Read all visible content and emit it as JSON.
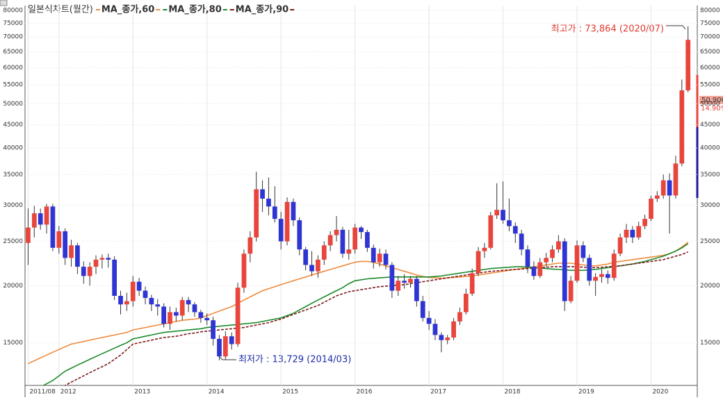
{
  "chart_data": {
    "type": "candlestick",
    "title": "일본식차트(월간)",
    "log_scale": true,
    "grid": true,
    "up_color": "#e8453c",
    "down_color": "#2f35d3",
    "ylim": [
      12100,
      82000
    ],
    "yticks": [
      15000,
      20000,
      25000,
      30000,
      35000,
      40000,
      45000,
      50000,
      55000,
      60000,
      65000,
      70000,
      75000,
      80000
    ],
    "categories": [
      "2011/08",
      null,
      null,
      null,
      null,
      "2012",
      null,
      null,
      null,
      null,
      null,
      null,
      null,
      null,
      null,
      null,
      null,
      "2013",
      null,
      null,
      null,
      null,
      null,
      null,
      null,
      null,
      null,
      null,
      null,
      "2014",
      null,
      null,
      null,
      null,
      null,
      null,
      null,
      null,
      null,
      null,
      null,
      "2015",
      null,
      null,
      null,
      null,
      null,
      null,
      null,
      null,
      null,
      null,
      null,
      "2016",
      null,
      null,
      null,
      null,
      null,
      null,
      null,
      null,
      null,
      null,
      null,
      "2017",
      null,
      null,
      null,
      null,
      null,
      null,
      null,
      null,
      null,
      null,
      null,
      "2018",
      null,
      null,
      null,
      null,
      null,
      null,
      null,
      null,
      null,
      null,
      null,
      "2019",
      null,
      null,
      null,
      null,
      null,
      null,
      null,
      null,
      null,
      null,
      null,
      "2020",
      null,
      null,
      null,
      null,
      null,
      null
    ],
    "open": [
      24800,
      26800,
      28800,
      27200,
      29800,
      24200,
      26300,
      23000,
      24500,
      22000,
      21000,
      22000,
      22800,
      23000,
      22800,
      19000,
      18200,
      18500,
      20400,
      19500,
      18800,
      18200,
      18000,
      16500,
      17500,
      17200,
      18600,
      18200,
      17500,
      17000,
      16800,
      15300,
      14000,
      15500,
      14900,
      19800,
      23500,
      25500,
      32500,
      31000,
      29800,
      28000,
      25000,
      30500,
      27800,
      24000,
      22200,
      21500,
      22800,
      24500,
      25800,
      26500,
      23500,
      24000,
      26800,
      26200,
      24200,
      22500,
      23500,
      22200,
      19500,
      20500,
      20300,
      20700,
      18500,
      17000,
      16500,
      15600,
      15200,
      15400,
      16700,
      17500,
      19200,
      21300,
      23800,
      24200,
      28500,
      29300,
      27800,
      27000,
      26000,
      24000,
      22000,
      21000,
      22500,
      23000,
      24000,
      25000,
      18500,
      20500,
      24500,
      23000,
      20500,
      20900,
      21200,
      20800,
      23500,
      25500,
      26500,
      25500,
      27000,
      28000,
      31000,
      31500,
      34000,
      31500,
      37000,
      53500
    ],
    "high": [
      29500,
      29900,
      29500,
      30200,
      30200,
      27000,
      26700,
      25200,
      24800,
      22600,
      22500,
      23300,
      23400,
      23500,
      23200,
      19500,
      19300,
      21000,
      20800,
      19900,
      19100,
      18700,
      18300,
      18000,
      17900,
      18900,
      18900,
      18400,
      17700,
      17400,
      17100,
      15600,
      15900,
      15800,
      20300,
      24000,
      26300,
      35500,
      34000,
      34500,
      33000,
      29000,
      31200,
      31000,
      28200,
      24300,
      23800,
      23300,
      25000,
      26300,
      28400,
      26900,
      26500,
      27300,
      27000,
      26500,
      24600,
      24100,
      24000,
      22500,
      21000,
      21200,
      21000,
      21000,
      19000,
      17600,
      16900,
      15800,
      15600,
      17000,
      17900,
      19700,
      21800,
      24300,
      24800,
      29000,
      33500,
      33800,
      31000,
      27500,
      26500,
      24500,
      22600,
      23000,
      23600,
      24500,
      25800,
      25400,
      21000,
      25100,
      25000,
      23400,
      21300,
      21700,
      21600,
      24000,
      26000,
      27300,
      27000,
      27600,
      28600,
      31500,
      32200,
      35000,
      35200,
      38500,
      56500,
      73864
    ],
    "low": [
      22200,
      25500,
      26500,
      26000,
      23800,
      23500,
      22200,
      22000,
      21200,
      20200,
      20000,
      21200,
      21800,
      21900,
      18600,
      17300,
      17600,
      18000,
      19000,
      18200,
      17600,
      17200,
      16200,
      16000,
      16700,
      16800,
      17500,
      17100,
      16600,
      16400,
      14800,
      13729,
      13800,
      14500,
      14700,
      19300,
      22500,
      25000,
      29000,
      28500,
      27500,
      24000,
      24500,
      27000,
      23300,
      21600,
      21000,
      20800,
      22200,
      23800,
      25000,
      23000,
      22800,
      23500,
      25300,
      23700,
      21800,
      22000,
      21700,
      18800,
      19000,
      19700,
      19800,
      18000,
      16700,
      16000,
      15200,
      14300,
      14900,
      15200,
      16400,
      17300,
      19000,
      21000,
      23000,
      24000,
      28000,
      27300,
      26300,
      24800,
      23300,
      21300,
      20600,
      20800,
      22000,
      22500,
      23600,
      17600,
      18300,
      20300,
      22500,
      20000,
      19000,
      20300,
      20200,
      20500,
      23200,
      24800,
      24800,
      25200,
      26600,
      27700,
      30500,
      31000,
      26000,
      31000,
      36500,
      53000
    ],
    "close": [
      26800,
      28800,
      27200,
      29800,
      24200,
      26300,
      23000,
      24500,
      22000,
      21000,
      22000,
      22800,
      23000,
      22800,
      19000,
      18200,
      18500,
      20400,
      19500,
      18800,
      18200,
      18000,
      16500,
      17500,
      17200,
      18600,
      18200,
      17500,
      17000,
      16800,
      15300,
      14000,
      15500,
      14900,
      19800,
      23500,
      25500,
      32500,
      31000,
      29800,
      28000,
      25000,
      30500,
      27800,
      24000,
      22200,
      21500,
      22800,
      24500,
      25800,
      26500,
      23500,
      24000,
      26800,
      26200,
      24200,
      22500,
      23500,
      22200,
      19500,
      20500,
      20300,
      20700,
      18500,
      17000,
      16500,
      15600,
      15200,
      15400,
      16700,
      17500,
      19200,
      21300,
      23800,
      24200,
      28500,
      29300,
      27800,
      27000,
      26000,
      24000,
      22000,
      21000,
      22500,
      23000,
      24000,
      25000,
      18500,
      20500,
      24500,
      23000,
      20500,
      20900,
      21200,
      20800,
      23500,
      25500,
      26500,
      25500,
      27000,
      28000,
      31000,
      31500,
      34000,
      31500,
      37000,
      53500,
      69000
    ],
    "series": [
      {
        "name": "MA_종가,60",
        "color": "#f08a3c",
        "dash": false,
        "values": [
          13500,
          13700,
          13900,
          14100,
          14300,
          14500,
          14700,
          14900,
          15000,
          15100,
          15200,
          15300,
          15400,
          15500,
          15600,
          15700,
          15800,
          16000,
          16100,
          16200,
          16300,
          16400,
          16500,
          16600,
          16700,
          16800,
          16850,
          16900,
          17000,
          17200,
          17400,
          17600,
          17800,
          18000,
          18300,
          18600,
          18900,
          19200,
          19500,
          19700,
          19900,
          20100,
          20300,
          20500,
          20700,
          20900,
          21100,
          21300,
          21500,
          21700,
          21900,
          22100,
          22300,
          22500,
          22600,
          22600,
          22500,
          22300,
          22100,
          21900,
          21700,
          21500,
          21300,
          21100,
          20950,
          20850,
          20800,
          20750,
          20800,
          20850,
          20900,
          20950,
          21000,
          21100,
          21200,
          21300,
          21400,
          21500,
          21600,
          21700,
          21800,
          21900,
          22000,
          22100,
          22200,
          22300,
          22400,
          22400,
          22400,
          22300,
          22200,
          22100,
          22100,
          22200,
          22300,
          22500,
          22600,
          22700,
          22800,
          22900,
          23000,
          23100,
          23200,
          23300,
          23500,
          23800,
          24300,
          24900
        ]
      },
      {
        "name": "MA_종가,80",
        "color": "#1a8a2a",
        "dash": false,
        "values": [
          11600,
          11800,
          12000,
          12200,
          12400,
          12700,
          13000,
          13200,
          13400,
          13600,
          13800,
          14000,
          14200,
          14400,
          14600,
          14800,
          15000,
          15300,
          15400,
          15500,
          15600,
          15700,
          15800,
          15850,
          15900,
          15950,
          16000,
          16050,
          16100,
          16200,
          16250,
          16300,
          16350,
          16400,
          16450,
          16500,
          16550,
          16600,
          16700,
          16800,
          16900,
          17000,
          17200,
          17400,
          17700,
          18000,
          18300,
          18600,
          18900,
          19200,
          19500,
          19800,
          20200,
          20500,
          20600,
          20700,
          20750,
          20800,
          20850,
          20900,
          20900,
          20900,
          20900,
          20900,
          20900,
          20900,
          20950,
          21000,
          21100,
          21200,
          21300,
          21400,
          21500,
          21600,
          21700,
          21800,
          21850,
          21900,
          21950,
          22000,
          22000,
          21950,
          21900,
          21850,
          21800,
          21750,
          21700,
          21650,
          21600,
          21600,
          21600,
          21650,
          21700,
          21800,
          21900,
          22000,
          22100,
          22200,
          22300,
          22450,
          22600,
          22800,
          23000,
          23200,
          23500,
          23800,
          24200,
          24700
        ]
      },
      {
        "name": "MA_종가,90",
        "color": "#7a1a1a",
        "dash": true,
        "values": [
          10800,
          11000,
          11200,
          11400,
          11600,
          11900,
          12100,
          12300,
          12500,
          12700,
          12900,
          13100,
          13300,
          13500,
          13800,
          14100,
          14500,
          14900,
          15000,
          15100,
          15200,
          15300,
          15400,
          15450,
          15500,
          15600,
          15700,
          15750,
          15850,
          15900,
          15950,
          16000,
          16050,
          16100,
          16150,
          16200,
          16300,
          16400,
          16500,
          16600,
          16750,
          16900,
          17100,
          17300,
          17500,
          17700,
          17900,
          18100,
          18400,
          18700,
          19000,
          19200,
          19400,
          19500,
          19600,
          19700,
          19800,
          19900,
          19950,
          20000,
          20050,
          20100,
          20200,
          20300,
          20400,
          20500,
          20600,
          20700,
          20800,
          20900,
          21000,
          21100,
          21200,
          21300,
          21400,
          21500,
          21550,
          21600,
          21650,
          21700,
          21750,
          21800,
          21850,
          21900,
          21950,
          22000,
          22000,
          22000,
          22000,
          22000,
          21950,
          21900,
          21900,
          21950,
          22000,
          22050,
          22100,
          22200,
          22300,
          22400,
          22500,
          22600,
          22700,
          22800,
          23000,
          23200,
          23400,
          23700
        ]
      }
    ],
    "annotations": {
      "high_label": "최고가 : 73,864 (2020/07)",
      "low_label": "최저가 : 13,729 (2014/03)",
      "price_label": "50,900",
      "change_label": "14.90%"
    }
  }
}
